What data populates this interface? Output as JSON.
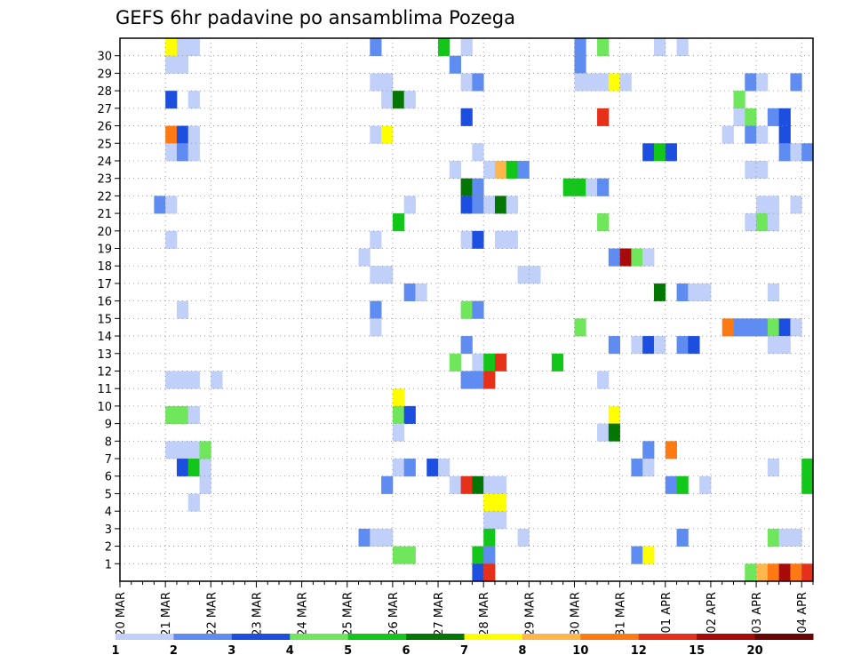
{
  "chart_data": {
    "type": "heatmap",
    "title": "GEFS 6hr padavine po ansamblima Pozega",
    "xlabel": "",
    "ylabel": "",
    "x_ticks": [
      "20 MAR",
      "21 MAR",
      "22 MAR",
      "23 MAR",
      "24 MAR",
      "25 MAR",
      "26 MAR",
      "27 MAR",
      "28 MAR",
      "29 MAR",
      "30 MAR",
      "31 MAR",
      "01 APR",
      "02 APR",
      "03 APR",
      "04 APR"
    ],
    "y_ticks": [
      1,
      2,
      3,
      4,
      5,
      6,
      7,
      8,
      9,
      10,
      11,
      12,
      13,
      14,
      15,
      16,
      17,
      18,
      19,
      20,
      21,
      22,
      23,
      24,
      25,
      26,
      27,
      28,
      29,
      30
    ],
    "grid": true,
    "colorbar": {
      "levels": [
        "1",
        "2",
        "3",
        "4",
        "5",
        "6",
        "7",
        "8",
        "10",
        "12",
        "15",
        "20"
      ],
      "colors": [
        "#c0d0f8",
        "#5f8cf0",
        "#1c4ee0",
        "#6fe65c",
        "#13c61a",
        "#047604",
        "#ffff00",
        "#ffb64a",
        "#ff7a12",
        "#e6301a",
        "#a60a0a",
        "#6a0505"
      ]
    },
    "color_legend_note": "v = colour class index 0-11 (0 = 1-2 mm, 11 = >20 mm)",
    "cells": [
      {
        "member": 30,
        "day": 1.0,
        "v": 6
      },
      {
        "member": 30,
        "day": 1.25,
        "v": 0
      },
      {
        "member": 30,
        "day": 1.5,
        "v": 0
      },
      {
        "member": 30,
        "day": 5.5,
        "v": 1
      },
      {
        "member": 30,
        "day": 7.0,
        "v": 4
      },
      {
        "member": 30,
        "day": 7.5,
        "v": 0
      },
      {
        "member": 30,
        "day": 10.0,
        "v": 1
      },
      {
        "member": 30,
        "day": 10.5,
        "v": 3
      },
      {
        "member": 30,
        "day": 11.75,
        "v": 0
      },
      {
        "member": 30,
        "day": 12.25,
        "v": 0
      },
      {
        "member": 29,
        "day": 1.0,
        "v": 0
      },
      {
        "member": 29,
        "day": 1.25,
        "v": 0
      },
      {
        "member": 29,
        "day": 7.25,
        "v": 1
      },
      {
        "member": 29,
        "day": 10.0,
        "v": 1
      },
      {
        "member": 28,
        "day": 5.5,
        "v": 0
      },
      {
        "member": 28,
        "day": 5.75,
        "v": 0
      },
      {
        "member": 28,
        "day": 7.5,
        "v": 0
      },
      {
        "member": 28,
        "day": 7.75,
        "v": 1
      },
      {
        "member": 28,
        "day": 10.0,
        "v": 0
      },
      {
        "member": 28,
        "day": 10.25,
        "v": 0
      },
      {
        "member": 28,
        "day": 10.5,
        "v": 0
      },
      {
        "member": 28,
        "day": 10.75,
        "v": 6
      },
      {
        "member": 28,
        "day": 11.0,
        "v": 0
      },
      {
        "member": 28,
        "day": 13.75,
        "v": 1
      },
      {
        "member": 28,
        "day": 14.0,
        "v": 0
      },
      {
        "member": 28,
        "day": 14.75,
        "v": 1
      },
      {
        "member": 27,
        "day": 1.0,
        "v": 2
      },
      {
        "member": 27,
        "day": 1.5,
        "v": 0
      },
      {
        "member": 27,
        "day": 5.75,
        "v": 0
      },
      {
        "member": 27,
        "day": 6.0,
        "v": 5
      },
      {
        "member": 27,
        "day": 6.25,
        "v": 0
      },
      {
        "member": 27,
        "day": 13.5,
        "v": 3
      },
      {
        "member": 26,
        "day": 7.5,
        "v": 2
      },
      {
        "member": 26,
        "day": 10.5,
        "v": 9
      },
      {
        "member": 26,
        "day": 13.5,
        "v": 0
      },
      {
        "member": 26,
        "day": 13.75,
        "v": 3
      },
      {
        "member": 26,
        "day": 14.25,
        "v": 1
      },
      {
        "member": 26,
        "day": 14.5,
        "v": 2
      },
      {
        "member": 25,
        "day": 1.0,
        "v": 8
      },
      {
        "member": 25,
        "day": 1.25,
        "v": 2
      },
      {
        "member": 25,
        "day": 1.5,
        "v": 0
      },
      {
        "member": 25,
        "day": 5.5,
        "v": 0
      },
      {
        "member": 25,
        "day": 5.75,
        "v": 6
      },
      {
        "member": 25,
        "day": 13.25,
        "v": 0
      },
      {
        "member": 25,
        "day": 13.75,
        "v": 1
      },
      {
        "member": 25,
        "day": 14.0,
        "v": 0
      },
      {
        "member": 25,
        "day": 14.5,
        "v": 2
      },
      {
        "member": 24,
        "day": 1.0,
        "v": 0
      },
      {
        "member": 24,
        "day": 1.25,
        "v": 1
      },
      {
        "member": 24,
        "day": 1.5,
        "v": 0
      },
      {
        "member": 24,
        "day": 7.75,
        "v": 0
      },
      {
        "member": 24,
        "day": 11.5,
        "v": 2
      },
      {
        "member": 24,
        "day": 11.75,
        "v": 4
      },
      {
        "member": 24,
        "day": 12.0,
        "v": 2
      },
      {
        "member": 24,
        "day": 14.5,
        "v": 1
      },
      {
        "member": 24,
        "day": 14.75,
        "v": 0
      },
      {
        "member": 24,
        "day": 15.0,
        "v": 1
      },
      {
        "member": 24,
        "day": 15.25,
        "v": 7
      },
      {
        "member": 23,
        "day": 7.25,
        "v": 0
      },
      {
        "member": 23,
        "day": 8.0,
        "v": 0
      },
      {
        "member": 23,
        "day": 8.25,
        "v": 7
      },
      {
        "member": 23,
        "day": 8.5,
        "v": 4
      },
      {
        "member": 23,
        "day": 8.75,
        "v": 1
      },
      {
        "member": 23,
        "day": 13.75,
        "v": 0
      },
      {
        "member": 23,
        "day": 14.0,
        "v": 0
      },
      {
        "member": 22,
        "day": 7.5,
        "v": 5
      },
      {
        "member": 22,
        "day": 7.75,
        "v": 1
      },
      {
        "member": 22,
        "day": 9.75,
        "v": 4
      },
      {
        "member": 22,
        "day": 10.0,
        "v": 4
      },
      {
        "member": 22,
        "day": 10.25,
        "v": 0
      },
      {
        "member": 22,
        "day": 10.5,
        "v": 1
      },
      {
        "member": 21,
        "day": 0.75,
        "v": 1
      },
      {
        "member": 21,
        "day": 1.0,
        "v": 0
      },
      {
        "member": 21,
        "day": 6.25,
        "v": 0
      },
      {
        "member": 21,
        "day": 7.5,
        "v": 2
      },
      {
        "member": 21,
        "day": 7.75,
        "v": 1
      },
      {
        "member": 21,
        "day": 8.0,
        "v": 0
      },
      {
        "member": 21,
        "day": 8.25,
        "v": 5
      },
      {
        "member": 21,
        "day": 8.5,
        "v": 0
      },
      {
        "member": 21,
        "day": 14.0,
        "v": 0
      },
      {
        "member": 21,
        "day": 14.25,
        "v": 0
      },
      {
        "member": 21,
        "day": 14.75,
        "v": 0
      },
      {
        "member": 20,
        "day": 6.0,
        "v": 4
      },
      {
        "member": 20,
        "day": 10.5,
        "v": 3
      },
      {
        "member": 20,
        "day": 13.75,
        "v": 0
      },
      {
        "member": 20,
        "day": 14.0,
        "v": 3
      },
      {
        "member": 20,
        "day": 14.25,
        "v": 0
      },
      {
        "member": 19,
        "day": 1.0,
        "v": 0
      },
      {
        "member": 19,
        "day": 5.5,
        "v": 0
      },
      {
        "member": 19,
        "day": 7.5,
        "v": 0
      },
      {
        "member": 19,
        "day": 7.75,
        "v": 2
      },
      {
        "member": 19,
        "day": 8.25,
        "v": 0
      },
      {
        "member": 19,
        "day": 8.5,
        "v": 0
      },
      {
        "member": 19,
        "day": 15.25,
        "v": 1
      },
      {
        "member": 18,
        "day": 5.25,
        "v": 0
      },
      {
        "member": 18,
        "day": 10.75,
        "v": 1
      },
      {
        "member": 18,
        "day": 11.0,
        "v": 10
      },
      {
        "member": 18,
        "day": 11.25,
        "v": 3
      },
      {
        "member": 18,
        "day": 11.5,
        "v": 0
      },
      {
        "member": 17,
        "day": 5.5,
        "v": 0
      },
      {
        "member": 17,
        "day": 5.75,
        "v": 0
      },
      {
        "member": 17,
        "day": 8.75,
        "v": 0
      },
      {
        "member": 17,
        "day": 9.0,
        "v": 0
      },
      {
        "member": 16,
        "day": 6.25,
        "v": 1
      },
      {
        "member": 16,
        "day": 6.5,
        "v": 0
      },
      {
        "member": 16,
        "day": 11.75,
        "v": 5
      },
      {
        "member": 16,
        "day": 12.25,
        "v": 1
      },
      {
        "member": 16,
        "day": 12.5,
        "v": 0
      },
      {
        "member": 16,
        "day": 12.75,
        "v": 0
      },
      {
        "member": 16,
        "day": 14.25,
        "v": 0
      },
      {
        "member": 15,
        "day": 1.25,
        "v": 0
      },
      {
        "member": 15,
        "day": 5.5,
        "v": 1
      },
      {
        "member": 15,
        "day": 7.5,
        "v": 3
      },
      {
        "member": 15,
        "day": 7.75,
        "v": 1
      },
      {
        "member": 14,
        "day": 5.5,
        "v": 0
      },
      {
        "member": 14,
        "day": 10.0,
        "v": 3
      },
      {
        "member": 14,
        "day": 13.25,
        "v": 8
      },
      {
        "member": 14,
        "day": 13.5,
        "v": 1
      },
      {
        "member": 14,
        "day": 13.75,
        "v": 1
      },
      {
        "member": 14,
        "day": 14.0,
        "v": 1
      },
      {
        "member": 14,
        "day": 14.25,
        "v": 3
      },
      {
        "member": 14,
        "day": 14.5,
        "v": 2
      },
      {
        "member": 14,
        "day": 14.75,
        "v": 0
      },
      {
        "member": 13,
        "day": 7.5,
        "v": 1
      },
      {
        "member": 13,
        "day": 10.75,
        "v": 1
      },
      {
        "member": 13,
        "day": 11.25,
        "v": 0
      },
      {
        "member": 13,
        "day": 11.5,
        "v": 2
      },
      {
        "member": 13,
        "day": 11.75,
        "v": 0
      },
      {
        "member": 13,
        "day": 12.25,
        "v": 1
      },
      {
        "member": 13,
        "day": 12.5,
        "v": 2
      },
      {
        "member": 13,
        "day": 14.25,
        "v": 0
      },
      {
        "member": 13,
        "day": 14.5,
        "v": 0
      },
      {
        "member": 12,
        "day": 7.25,
        "v": 3
      },
      {
        "member": 12,
        "day": 7.75,
        "v": 0
      },
      {
        "member": 12,
        "day": 8.0,
        "v": 4
      },
      {
        "member": 12,
        "day": 8.25,
        "v": 9
      },
      {
        "member": 12,
        "day": 9.5,
        "v": 4
      },
      {
        "member": 11,
        "day": 1.0,
        "v": 0
      },
      {
        "member": 11,
        "day": 1.25,
        "v": 0
      },
      {
        "member": 11,
        "day": 1.5,
        "v": 0
      },
      {
        "member": 11,
        "day": 2.0,
        "v": 0
      },
      {
        "member": 11,
        "day": 7.5,
        "v": 1
      },
      {
        "member": 11,
        "day": 7.75,
        "v": 1
      },
      {
        "member": 11,
        "day": 10.5,
        "v": 0
      },
      {
        "member": 10,
        "day": 6.0,
        "v": 6
      },
      {
        "member": 9,
        "day": 1.0,
        "v": 3
      },
      {
        "member": 9,
        "day": 1.25,
        "v": 3
      },
      {
        "member": 9,
        "day": 1.5,
        "v": 0
      },
      {
        "member": 9,
        "day": 6.0,
        "v": 3
      },
      {
        "member": 9,
        "day": 6.25,
        "v": 2
      },
      {
        "member": 9,
        "day": 10.75,
        "v": 6
      },
      {
        "member": 8,
        "day": 6.0,
        "v": 0
      },
      {
        "member": 8,
        "day": 10.5,
        "v": 0
      },
      {
        "member": 8,
        "day": 10.75,
        "v": 5
      },
      {
        "member": 7,
        "day": 1.0,
        "v": 0
      },
      {
        "member": 7,
        "day": 1.25,
        "v": 0
      },
      {
        "member": 7,
        "day": 1.5,
        "v": 0
      },
      {
        "member": 7,
        "day": 11.5,
        "v": 1
      },
      {
        "member": 7,
        "day": 12.0,
        "v": 8
      },
      {
        "member": 6,
        "day": 1.25,
        "v": 2
      },
      {
        "member": 6,
        "day": 1.5,
        "v": 4
      },
      {
        "member": 6,
        "day": 1.75,
        "v": 0
      },
      {
        "member": 6,
        "day": 6.0,
        "v": 0
      },
      {
        "member": 6,
        "day": 6.25,
        "v": 1
      },
      {
        "member": 6,
        "day": 6.75,
        "v": 2
      },
      {
        "member": 6,
        "day": 7.0,
        "v": 0
      },
      {
        "member": 6,
        "day": 11.25,
        "v": 1
      },
      {
        "member": 6,
        "day": 11.5,
        "v": 0
      },
      {
        "member": 6,
        "day": 14.25,
        "v": 0
      },
      {
        "member": 6,
        "day": 15.0,
        "v": 4
      },
      {
        "member": 6,
        "day": 15.25,
        "v": 1
      },
      {
        "member": 5,
        "day": 1.75,
        "v": 0
      },
      {
        "member": 5,
        "day": 5.75,
        "v": 1
      },
      {
        "member": 5,
        "day": 7.25,
        "v": 0
      },
      {
        "member": 5,
        "day": 7.5,
        "v": 9
      },
      {
        "member": 5,
        "day": 7.75,
        "v": 5
      },
      {
        "member": 5,
        "day": 8.0,
        "v": 0
      },
      {
        "member": 5,
        "day": 8.25,
        "v": 0
      },
      {
        "member": 5,
        "day": 12.0,
        "v": 1
      },
      {
        "member": 5,
        "day": 12.25,
        "v": 4
      },
      {
        "member": 5,
        "day": 12.75,
        "v": 0
      },
      {
        "member": 4,
        "day": 1.5,
        "v": 0
      },
      {
        "member": 4,
        "day": 8.0,
        "v": 6
      },
      {
        "member": 4,
        "day": 8.25,
        "v": 6
      },
      {
        "member": 3,
        "day": 8.0,
        "v": 0
      },
      {
        "member": 3,
        "day": 8.25,
        "v": 0
      },
      {
        "member": 2,
        "day": 5.25,
        "v": 1
      },
      {
        "member": 2,
        "day": 5.5,
        "v": 0
      },
      {
        "member": 2,
        "day": 5.75,
        "v": 0
      },
      {
        "member": 2,
        "day": 8.0,
        "v": 4
      },
      {
        "member": 2,
        "day": 8.75,
        "v": 0
      },
      {
        "member": 2,
        "day": 12.25,
        "v": 1
      },
      {
        "member": 2,
        "day": 14.25,
        "v": 3
      },
      {
        "member": 2,
        "day": 14.5,
        "v": 0
      },
      {
        "member": 2,
        "day": 14.75,
        "v": 0
      },
      {
        "member": 1,
        "day": 6.0,
        "v": 3
      },
      {
        "member": 1,
        "day": 6.25,
        "v": 3
      },
      {
        "member": 1,
        "day": 7.75,
        "v": 4
      },
      {
        "member": 1,
        "day": 8.0,
        "v": 1
      },
      {
        "member": 1,
        "day": 11.25,
        "v": 1
      },
      {
        "member": 1,
        "day": 11.5,
        "v": 6
      },
      {
        "member": 0,
        "day": 7.75,
        "v": 2
      },
      {
        "member": 0,
        "day": 8.0,
        "v": 9
      },
      {
        "member": 0,
        "day": 13.75,
        "v": 3
      },
      {
        "member": 0,
        "day": 14.0,
        "v": 7
      },
      {
        "member": 0,
        "day": 14.25,
        "v": 8
      },
      {
        "member": 0,
        "day": 14.5,
        "v": 10
      },
      {
        "member": 0,
        "day": 14.75,
        "v": 8
      },
      {
        "member": 0,
        "day": 15.0,
        "v": 9
      },
      {
        "member": 0,
        "day": 15.25,
        "v": 7
      },
      {
        "member": 0,
        "day": 15.5,
        "v": 2
      },
      {
        "member": 7,
        "day": 1.75,
        "v": 3
      },
      {
        "member": 5,
        "day": 15.0,
        "v": 4
      },
      {
        "member": 5,
        "day": 15.25,
        "v": 1
      },
      {
        "member": 24,
        "day": 15.25,
        "v": 7
      },
      {
        "member": 11,
        "day": 8.0,
        "v": 9
      }
    ]
  }
}
